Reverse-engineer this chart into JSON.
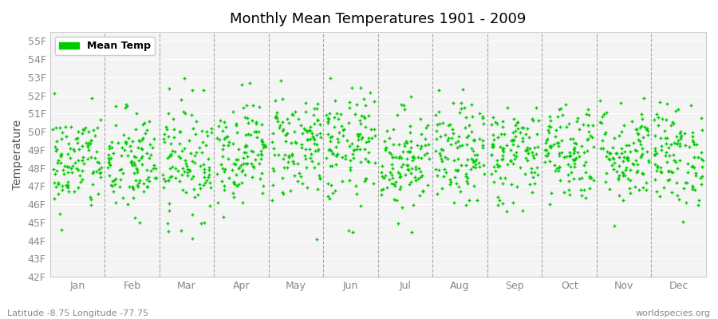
{
  "title": "Monthly Mean Temperatures 1901 - 2009",
  "ylabel": "Temperature",
  "xlabel_months": [
    "Jan",
    "Feb",
    "Mar",
    "Apr",
    "May",
    "Jun",
    "Jul",
    "Aug",
    "Sep",
    "Oct",
    "Nov",
    "Dec"
  ],
  "ylim": [
    42,
    55.5
  ],
  "yticks": [
    42,
    43,
    44,
    45,
    46,
    47,
    48,
    49,
    50,
    51,
    52,
    53,
    54,
    55
  ],
  "ytick_labels": [
    "42F",
    "43F",
    "44F",
    "45F",
    "46F",
    "47F",
    "48F",
    "49F",
    "50F",
    "51F",
    "52F",
    "53F",
    "54F",
    "55F"
  ],
  "dot_color": "#00cc00",
  "dot_size": 10,
  "background_color": "#f0f0f0",
  "plot_bg_color": "#f4f4f4",
  "legend_label": "Mean Temp",
  "subtitle_left": "Latitude -8.75 Longitude -77.75",
  "subtitle_right": "worldspecies.org",
  "years": 109,
  "seed": 42,
  "monthly_means": [
    48.3,
    48.2,
    48.5,
    49.0,
    49.3,
    49.1,
    48.5,
    48.7,
    48.8,
    49.0,
    48.8,
    48.7
  ],
  "monthly_stds": [
    1.4,
    1.5,
    1.6,
    1.4,
    1.5,
    1.6,
    1.4,
    1.4,
    1.4,
    1.4,
    1.4,
    1.4
  ],
  "tick_color": "#888888",
  "spine_color": "#cccccc",
  "vline_color": "#888888"
}
